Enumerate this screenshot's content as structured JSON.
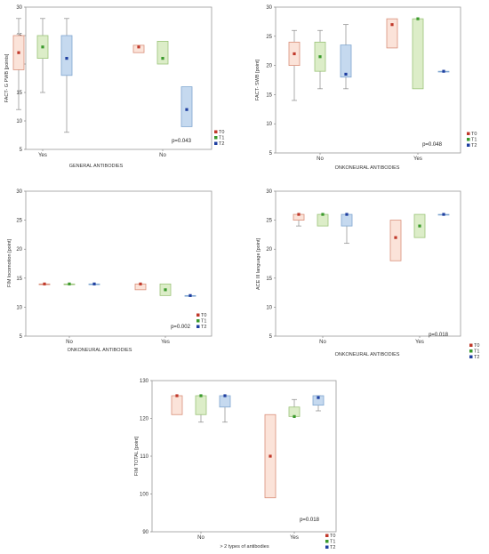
{
  "colors": {
    "T0": {
      "fill": "#fbe3d9",
      "stroke": "#d9907a",
      "point": "#c0392b"
    },
    "T1": {
      "fill": "#dcedc8",
      "stroke": "#9cc47a",
      "point": "#3a9a2c"
    },
    "T2": {
      "fill": "#c5d9ef",
      "stroke": "#7fa6d0",
      "point": "#1f3fa0"
    }
  },
  "chart_data": [
    {
      "type": "box",
      "xlabel": "GENERAL ANTIBODIES",
      "ylabel": "FACT- G PWB [points]",
      "ylim": [
        5,
        30
      ],
      "yticks": [
        5,
        10,
        15,
        20,
        25,
        30
      ],
      "categories": [
        "Yes",
        "No"
      ],
      "p_value": "p=0.043",
      "legend": [
        "T0",
        "T1",
        "T2"
      ],
      "series": [
        {
          "name": "T0",
          "boxes": [
            {
              "q1": 19,
              "q3": 25,
              "median": 22,
              "min": 12,
              "max": 28
            },
            {
              "q1": 22,
              "q3": 23.3,
              "median": 23,
              "min": null,
              "max": null
            }
          ]
        },
        {
          "name": "T1",
          "boxes": [
            {
              "q1": 21,
              "q3": 25,
              "median": 23,
              "min": 15,
              "max": 28
            },
            {
              "q1": 20,
              "q3": 24,
              "median": 21,
              "min": null,
              "max": null
            }
          ]
        },
        {
          "name": "T2",
          "boxes": [
            {
              "q1": 18,
              "q3": 25,
              "median": 21,
              "min": 8,
              "max": 28
            },
            {
              "q1": 9,
              "q3": 16,
              "median": 12,
              "min": null,
              "max": null
            }
          ]
        }
      ]
    },
    {
      "type": "box",
      "xlabel": "ONKONEURAL ANTIBODIES",
      "ylabel": "FACT- SWB [point]",
      "ylim": [
        5,
        30
      ],
      "yticks": [
        5,
        10,
        15,
        20,
        25,
        30
      ],
      "categories": [
        "No",
        "Yes"
      ],
      "p_value": "p=0.048",
      "legend": [
        "T0",
        "T1",
        "T2"
      ],
      "series": [
        {
          "name": "T0",
          "boxes": [
            {
              "q1": 20,
              "q3": 24,
              "median": 22,
              "min": 14,
              "max": 26
            },
            {
              "q1": 23,
              "q3": 28,
              "median": 27,
              "min": null,
              "max": null
            }
          ]
        },
        {
          "name": "T1",
          "boxes": [
            {
              "q1": 19,
              "q3": 24,
              "median": 21.5,
              "min": 16,
              "max": 26
            },
            {
              "q1": 16,
              "q3": 28,
              "median": 28,
              "min": null,
              "max": null
            }
          ]
        },
        {
          "name": "T2",
          "boxes": [
            {
              "q1": 18,
              "q3": 23.5,
              "median": 18.5,
              "min": 16,
              "max": 27
            },
            {
              "q1": 19,
              "q3": 19,
              "median": 19,
              "min": null,
              "max": null
            }
          ]
        }
      ]
    },
    {
      "type": "box",
      "xlabel": "ONKONEURAL ANTIBODIES",
      "ylabel": "FIM locomotion [point]",
      "ylim": [
        5,
        30
      ],
      "yticks": [
        5,
        10,
        15,
        20,
        25,
        30
      ],
      "categories": [
        "No",
        "Yes"
      ],
      "p_value": "p=0.002",
      "legend": [
        "T0",
        "T1",
        "T2"
      ],
      "series": [
        {
          "name": "T0",
          "boxes": [
            {
              "q1": 14,
              "q3": 14,
              "median": 14,
              "min": null,
              "max": null
            },
            {
              "q1": 13,
              "q3": 14,
              "median": 14,
              "min": null,
              "max": null
            }
          ]
        },
        {
          "name": "T1",
          "boxes": [
            {
              "q1": 14,
              "q3": 14,
              "median": 14,
              "min": null,
              "max": null
            },
            {
              "q1": 12,
              "q3": 14,
              "median": 13,
              "min": null,
              "max": null
            }
          ]
        },
        {
          "name": "T2",
          "boxes": [
            {
              "q1": 14,
              "q3": 14,
              "median": 14,
              "min": null,
              "max": null
            },
            {
              "q1": 12,
              "q3": 12,
              "median": 12,
              "min": null,
              "max": null
            }
          ]
        }
      ]
    },
    {
      "type": "box",
      "xlabel": "ONKONEURAL ANTIBODIES",
      "ylabel": "ACE III language [point]",
      "ylim": [
        5,
        30
      ],
      "yticks": [
        5,
        10,
        15,
        20,
        25,
        30
      ],
      "categories": [
        "No",
        "Yes"
      ],
      "p_value": "p=0.018",
      "legend": [
        "T0",
        "T1",
        "T2"
      ],
      "series": [
        {
          "name": "T0",
          "boxes": [
            {
              "q1": 25,
              "q3": 26,
              "median": 26,
              "min": 24,
              "max": 26
            },
            {
              "q1": 18,
              "q3": 25,
              "median": 22,
              "min": null,
              "max": null
            }
          ]
        },
        {
          "name": "T1",
          "boxes": [
            {
              "q1": 24,
              "q3": 26,
              "median": 26,
              "min": 24,
              "max": 26
            },
            {
              "q1": 22,
              "q3": 26,
              "median": 24,
              "min": null,
              "max": null
            }
          ]
        },
        {
          "name": "T2",
          "boxes": [
            {
              "q1": 24,
              "q3": 26,
              "median": 26,
              "min": 21,
              "max": 26
            },
            {
              "q1": 26,
              "q3": 26,
              "median": 26,
              "min": null,
              "max": null
            }
          ]
        }
      ]
    },
    {
      "type": "box",
      "xlabel": "> 2 types of antibodies",
      "ylabel": "FIM TOTAL [point]",
      "ylim": [
        90,
        130
      ],
      "yticks": [
        90,
        100,
        110,
        120,
        130
      ],
      "categories": [
        "No",
        "Yes"
      ],
      "p_value": "p=0.018",
      "legend": [
        "T0",
        "T1",
        "T2"
      ],
      "series": [
        {
          "name": "T0",
          "boxes": [
            {
              "q1": 121,
              "q3": 126,
              "median": 126,
              "min": null,
              "max": null
            },
            {
              "q1": 99,
              "q3": 121,
              "median": 110,
              "min": null,
              "max": null
            }
          ]
        },
        {
          "name": "T1",
          "boxes": [
            {
              "q1": 121,
              "q3": 126,
              "median": 126,
              "min": 119,
              "max": 126
            },
            {
              "q1": 120.5,
              "q3": 123,
              "median": 120.5,
              "min": null,
              "max": 125
            }
          ]
        },
        {
          "name": "T2",
          "boxes": [
            {
              "q1": 123,
              "q3": 126,
              "median": 126,
              "min": 119,
              "max": 126
            },
            {
              "q1": 123.5,
              "q3": 126,
              "median": 125.5,
              "min": 122,
              "max": 126
            }
          ]
        }
      ]
    }
  ]
}
